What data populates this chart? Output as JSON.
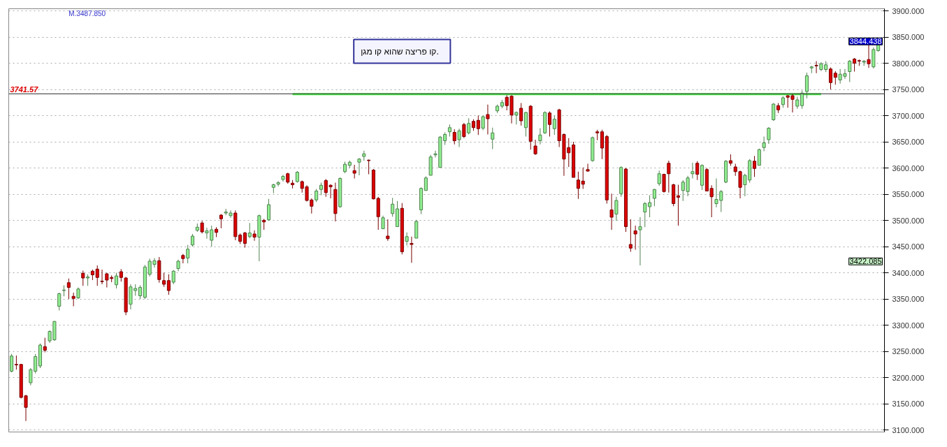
{
  "chart_data": {
    "type": "candlestick",
    "categories": [
      null,
      null,
      null,
      null,
      null,
      null,
      null,
      null,
      null,
      null,
      null,
      null,
      null,
      null,
      null,
      null,
      null,
      null,
      null,
      null,
      null,
      null,
      null,
      null,
      null,
      null,
      null,
      null,
      null,
      null,
      null,
      null,
      null,
      null,
      null,
      null,
      null,
      null,
      null,
      null,
      null,
      null,
      null,
      null,
      null,
      null,
      null,
      null,
      null,
      null,
      null,
      null,
      null,
      null,
      null,
      null,
      null,
      null,
      null,
      null,
      null,
      null,
      null,
      null,
      null,
      null,
      null,
      null,
      null,
      null,
      null,
      null,
      null,
      null,
      null,
      null,
      null,
      null,
      null,
      null,
      null,
      null,
      null,
      null,
      null,
      null,
      null,
      null,
      null,
      null,
      null,
      null,
      null,
      null,
      null,
      null,
      null,
      null,
      null,
      null,
      null,
      null,
      null,
      null,
      null,
      null,
      null,
      null,
      null,
      null,
      null,
      null,
      null,
      null,
      null,
      null,
      null,
      null,
      null,
      null,
      null,
      null,
      null,
      null,
      null,
      null,
      null,
      null,
      null,
      null,
      null,
      null,
      null,
      null,
      null,
      null,
      null,
      null,
      null,
      null,
      null,
      null,
      null,
      null,
      null,
      null,
      null,
      null,
      null,
      null,
      null,
      null,
      null,
      null,
      null,
      null,
      null,
      null,
      null,
      null,
      null,
      null,
      null,
      null,
      null,
      null,
      null,
      null,
      null,
      null,
      null,
      null,
      null,
      null,
      null,
      null,
      null,
      null,
      null,
      null,
      null,
      null,
      null
    ],
    "ohlc": [
      [
        3212,
        3245,
        3210,
        3241
      ],
      [
        3225,
        3242,
        3215,
        3224
      ],
      [
        3225,
        3226,
        3160,
        3162
      ],
      [
        3165,
        3167,
        3117,
        3143
      ],
      [
        3190,
        3218,
        3185,
        3215
      ],
      [
        3212,
        3245,
        3208,
        3240
      ],
      [
        3222,
        3265,
        3218,
        3262
      ],
      [
        3259,
        3276,
        3248,
        3252
      ],
      [
        3270,
        3290,
        3266,
        3288
      ],
      [
        3272,
        3308,
        3270,
        3307
      ],
      [
        3336,
        3362,
        3328,
        3360
      ],
      [
        3366,
        3376,
        3355,
        3367
      ],
      [
        3381,
        3389,
        3350,
        3372
      ],
      [
        3355,
        3362,
        3336,
        3351
      ],
      [
        3352,
        3372,
        3350,
        3369
      ],
      [
        3399,
        3404,
        3375,
        3390
      ],
      [
        3390,
        3397,
        3375,
        3392
      ],
      [
        3403,
        3406,
        3386,
        3396
      ],
      [
        3407,
        3414,
        3375,
        3391
      ],
      [
        3384,
        3406,
        3378,
        3383
      ],
      [
        3398,
        3400,
        3372,
        3386
      ],
      [
        3391,
        3395,
        3382,
        3389
      ],
      [
        3377,
        3400,
        3370,
        3394
      ],
      [
        3402,
        3407,
        3383,
        3391
      ],
      [
        3390,
        3392,
        3319,
        3325
      ],
      [
        3340,
        3378,
        3330,
        3373
      ],
      [
        3366,
        3378,
        3356,
        3370
      ],
      [
        3356,
        3376,
        3350,
        3372
      ],
      [
        3353,
        3415,
        3350,
        3411
      ],
      [
        3397,
        3427,
        3393,
        3422
      ],
      [
        3416,
        3428,
        3410,
        3423
      ],
      [
        3423,
        3430,
        3381,
        3387
      ],
      [
        3385,
        3400,
        3373,
        3378
      ],
      [
        3385,
        3397,
        3358,
        3366
      ],
      [
        3382,
        3405,
        3378,
        3403
      ],
      [
        3408,
        3425,
        3403,
        3422
      ],
      [
        3433,
        3436,
        3418,
        3427
      ],
      [
        3428,
        3453,
        3418,
        3445
      ],
      [
        3453,
        3474,
        3450,
        3470
      ],
      [
        3481,
        3494,
        3478,
        3487
      ],
      [
        3495,
        3499,
        3475,
        3478
      ],
      [
        3476,
        3486,
        3465,
        3480
      ],
      [
        3462,
        3490,
        3450,
        3482
      ],
      [
        3483,
        3487,
        3468,
        3477
      ],
      [
        3510,
        3512,
        3485,
        3503
      ],
      [
        3514,
        3522,
        3510,
        3516
      ],
      [
        3509,
        3519,
        3505,
        3514
      ],
      [
        3514,
        3519,
        3462,
        3469
      ],
      [
        3472,
        3475,
        3455,
        3460
      ],
      [
        3476,
        3478,
        3448,
        3456
      ],
      [
        3469,
        3495,
        3466,
        3476
      ],
      [
        3474,
        3481,
        3461,
        3468
      ],
      [
        3468,
        3511,
        3422,
        3509
      ],
      [
        3500,
        3503,
        3482,
        3497
      ],
      [
        3501,
        3541,
        3499,
        3530
      ],
      [
        3563,
        3570,
        3552,
        3568
      ],
      [
        3569,
        3575,
        3565,
        3572
      ],
      [
        3578,
        3587,
        3574,
        3584
      ],
      [
        3589,
        3591,
        3570,
        3573
      ],
      [
        3571,
        3577,
        3561,
        3568
      ],
      [
        3574,
        3594,
        3572,
        3592
      ],
      [
        3574,
        3576,
        3553,
        3561
      ],
      [
        3564,
        3567,
        3536,
        3538
      ],
      [
        3539,
        3542,
        3513,
        3527
      ],
      [
        3539,
        3560,
        3535,
        3556
      ],
      [
        3559,
        3572,
        3548,
        3567
      ],
      [
        3576,
        3579,
        3545,
        3553
      ],
      [
        3567,
        3569,
        3542,
        3564
      ],
      [
        3559,
        3572,
        3498,
        3513
      ],
      [
        3526,
        3582,
        3524,
        3580
      ],
      [
        3593,
        3612,
        3590,
        3607
      ],
      [
        3605,
        3614,
        3600,
        3611
      ],
      [
        3595,
        3606,
        3580,
        3590
      ],
      [
        3611,
        3619,
        3586,
        3617
      ],
      [
        3622,
        3633,
        3614,
        3627
      ],
      [
        3615,
        3616,
        3588,
        3614
      ],
      [
        3596,
        3598,
        3540,
        3541
      ],
      [
        3542,
        3545,
        3482,
        3507
      ],
      [
        3484,
        3509,
        3484,
        3505
      ],
      [
        3470,
        3502,
        3461,
        3465
      ],
      [
        3513,
        3543,
        3507,
        3531
      ],
      [
        3488,
        3537,
        3488,
        3522
      ],
      [
        3523,
        3533,
        3435,
        3440
      ],
      [
        3460,
        3477,
        3452,
        3469
      ],
      [
        3456,
        3469,
        3419,
        3454
      ],
      [
        3466,
        3501,
        3466,
        3498
      ],
      [
        3520,
        3563,
        3512,
        3561
      ],
      [
        3557,
        3584,
        3557,
        3581
      ],
      [
        3586,
        3625,
        3586,
        3621
      ],
      [
        3625,
        3633,
        3620,
        3627
      ],
      [
        3601,
        3661,
        3601,
        3659
      ],
      [
        3652,
        3668,
        3644,
        3664
      ],
      [
        3669,
        3683,
        3660,
        3677
      ],
      [
        3668,
        3674,
        3645,
        3652
      ],
      [
        3654,
        3675,
        3640,
        3671
      ],
      [
        3683,
        3686,
        3657,
        3660
      ],
      [
        3667,
        3695,
        3664,
        3685
      ],
      [
        3689,
        3693,
        3671,
        3677
      ],
      [
        3691,
        3700,
        3663,
        3675
      ],
      [
        3676,
        3700,
        3672,
        3698
      ],
      [
        3702,
        3721,
        3664,
        3694
      ],
      [
        3655,
        3677,
        3636,
        3667
      ],
      [
        3709,
        3721,
        3705,
        3718
      ],
      [
        3718,
        3730,
        3714,
        3725
      ],
      [
        3735,
        3739,
        3710,
        3719
      ],
      [
        3737,
        3739,
        3685,
        3701
      ],
      [
        3701,
        3708,
        3683,
        3706
      ],
      [
        3714,
        3724,
        3681,
        3690
      ],
      [
        3677,
        3707,
        3660,
        3706
      ],
      [
        3718,
        3720,
        3635,
        3651
      ],
      [
        3642,
        3654,
        3625,
        3627
      ],
      [
        3652,
        3676,
        3645,
        3663
      ],
      [
        3667,
        3708,
        3665,
        3706
      ],
      [
        3705,
        3708,
        3660,
        3683
      ],
      [
        3675,
        3700,
        3663,
        3693
      ],
      [
        3711,
        3713,
        3640,
        3652
      ],
      [
        3664,
        3666,
        3585,
        3617
      ],
      [
        3639,
        3657,
        3602,
        3629
      ],
      [
        3644,
        3650,
        3582,
        3582
      ],
      [
        3577,
        3593,
        3541,
        3561
      ],
      [
        3575,
        3601,
        3560,
        3569
      ],
      [
        3597,
        3608,
        3593,
        3594
      ],
      [
        3614,
        3660,
        3612,
        3658
      ],
      [
        3669,
        3673,
        3653,
        3667
      ],
      [
        3669,
        3673,
        3617,
        3638
      ],
      [
        3660,
        3663,
        3532,
        3539
      ],
      [
        3520,
        3551,
        3482,
        3506
      ],
      [
        3512,
        3545,
        3499,
        3538
      ],
      [
        3551,
        3603,
        3545,
        3601
      ],
      [
        3598,
        3600,
        3478,
        3488
      ],
      [
        3454,
        3502,
        3440,
        3447
      ],
      [
        3480,
        3490,
        3444,
        3474
      ],
      [
        3482,
        3506,
        3414,
        3488
      ],
      [
        3516,
        3535,
        3487,
        3532
      ],
      [
        3526,
        3548,
        3506,
        3534
      ],
      [
        3542,
        3560,
        3527,
        3559
      ],
      [
        3570,
        3595,
        3566,
        3589
      ],
      [
        3588,
        3589,
        3553,
        3555
      ],
      [
        3609,
        3614,
        3553,
        3589
      ],
      [
        3568,
        3570,
        3527,
        3532
      ],
      [
        3547,
        3568,
        3490,
        3544
      ],
      [
        3557,
        3577,
        3537,
        3573
      ],
      [
        3555,
        3585,
        3546,
        3581
      ],
      [
        3589,
        3610,
        3580,
        3593
      ],
      [
        3609,
        3613,
        3577,
        3588
      ],
      [
        3567,
        3607,
        3558,
        3605
      ],
      [
        3597,
        3600,
        3556,
        3556
      ],
      [
        3561,
        3567,
        3506,
        3545
      ],
      [
        3532,
        3580,
        3525,
        3540
      ],
      [
        3538,
        3558,
        3516,
        3555
      ],
      [
        3573,
        3615,
        3571,
        3613
      ],
      [
        3614,
        3626,
        3604,
        3609
      ],
      [
        3602,
        3608,
        3585,
        3593
      ],
      [
        3593,
        3595,
        3542,
        3563
      ],
      [
        3568,
        3589,
        3546,
        3586
      ],
      [
        3577,
        3617,
        3572,
        3614
      ],
      [
        3613,
        3623,
        3583,
        3599
      ],
      [
        3605,
        3637,
        3605,
        3635
      ],
      [
        3639,
        3660,
        3632,
        3648
      ],
      [
        3654,
        3678,
        3646,
        3676
      ],
      [
        3692,
        3724,
        3690,
        3722
      ],
      [
        3719,
        3724,
        3705,
        3711
      ],
      [
        3721,
        3737,
        3715,
        3734
      ],
      [
        3738,
        3739,
        3715,
        3735
      ],
      [
        3738,
        3741,
        3706,
        3731
      ],
      [
        3718,
        3736,
        3713,
        3730
      ],
      [
        3719,
        3748,
        3713,
        3743
      ],
      [
        3746,
        3782,
        3733,
        3776
      ],
      [
        3791,
        3795,
        3781,
        3793
      ],
      [
        3796,
        3804,
        3781,
        3795
      ],
      [
        3788,
        3802,
        3785,
        3799
      ],
      [
        3788,
        3804,
        3783,
        3797
      ],
      [
        3789,
        3792,
        3750,
        3763
      ],
      [
        3781,
        3785,
        3759,
        3773
      ],
      [
        3768,
        3789,
        3761,
        3779
      ],
      [
        3775,
        3789,
        3770,
        3780
      ],
      [
        3784,
        3806,
        3764,
        3804
      ],
      [
        3808,
        3810,
        3784,
        3800
      ],
      [
        3805,
        3807,
        3795,
        3804
      ],
      [
        3802,
        3806,
        3795,
        3804
      ],
      [
        3807,
        3836,
        3791,
        3799
      ],
      [
        3793,
        3830,
        3790,
        3826
      ],
      [
        3824,
        3846,
        3822,
        3844
      ]
    ],
    "colors": [
      "#90ee90",
      "#dd0000",
      "#dd0000",
      "#dd0000",
      "#90ee90",
      "#90ee90",
      "#90ee90",
      "#dd0000",
      "#90ee90",
      "#90ee90",
      "#90ee90",
      "#90ee90",
      "#dd0000",
      "#dd0000",
      "#90ee90",
      "#dd0000",
      "#90ee90",
      "#dd0000",
      "#dd0000",
      "#dd0000",
      "#dd0000",
      "#dd0000",
      "#90ee90",
      "#dd0000",
      "#dd0000",
      "#90ee90",
      "#90ee90",
      "#90ee90",
      "#90ee90",
      "#90ee90",
      "#90ee90",
      "#dd0000",
      "#dd0000",
      "#dd0000",
      "#90ee90",
      "#90ee90",
      "#dd0000",
      "#90ee90",
      "#90ee90",
      "#90ee90",
      "#dd0000",
      "#90ee90",
      "#90ee90",
      "#dd0000",
      "#dd0000",
      "#90ee90",
      "#90ee90",
      "#dd0000",
      "#dd0000",
      "#dd0000",
      "#90ee90",
      "#dd0000",
      "#90ee90",
      "#dd0000",
      "#90ee90",
      "#90ee90",
      "#90ee90",
      "#90ee90",
      "#dd0000",
      "#dd0000",
      "#90ee90",
      "#dd0000",
      "#dd0000",
      "#dd0000",
      "#90ee90",
      "#90ee90",
      "#dd0000",
      "#dd0000",
      "#dd0000",
      "#90ee90",
      "#90ee90",
      "#90ee90",
      "#dd0000",
      "#90ee90",
      "#90ee90",
      "#dd0000",
      "#dd0000",
      "#dd0000",
      "#90ee90",
      "#dd0000",
      "#90ee90",
      "#90ee90",
      "#dd0000",
      "#90ee90",
      "#dd0000",
      "#90ee90",
      "#90ee90",
      "#90ee90",
      "#90ee90",
      "#90ee90",
      "#90ee90",
      "#90ee90",
      "#90ee90",
      "#dd0000",
      "#90ee90",
      "#dd0000",
      "#90ee90",
      "#dd0000",
      "#dd0000",
      "#90ee90",
      "#dd0000",
      "#90ee90",
      "#90ee90",
      "#90ee90",
      "#dd0000",
      "#dd0000",
      "#90ee90",
      "#dd0000",
      "#90ee90",
      "#dd0000",
      "#dd0000",
      "#90ee90",
      "#90ee90",
      "#dd0000",
      "#90ee90",
      "#dd0000",
      "#dd0000",
      "#dd0000",
      "#dd0000",
      "#dd0000",
      "#dd0000",
      "#dd0000",
      "#90ee90",
      "#dd0000",
      "#dd0000",
      "#dd0000",
      "#dd0000",
      "#90ee90",
      "#90ee90",
      "#dd0000",
      "#dd0000",
      "#dd0000",
      "#90ee90",
      "#90ee90",
      "#90ee90",
      "#90ee90",
      "#90ee90",
      "#dd0000",
      "#dd0000",
      "#dd0000",
      "#dd0000",
      "#90ee90",
      "#90ee90",
      "#90ee90",
      "#dd0000",
      "#90ee90",
      "#dd0000",
      "#dd0000",
      "#90ee90",
      "#90ee90",
      "#90ee90",
      "#dd0000",
      "#dd0000",
      "#dd0000",
      "#90ee90",
      "#90ee90",
      "#dd0000",
      "#90ee90",
      "#90ee90",
      "#90ee90",
      "#90ee90",
      "#dd0000",
      "#90ee90",
      "#dd0000",
      "#dd0000",
      "#90ee90",
      "#90ee90",
      "#90ee90",
      "#90ee90",
      "#dd0000",
      "#90ee90",
      "#90ee90",
      "#dd0000",
      "#dd0000",
      "#90ee90",
      "#90ee90",
      "#90ee90",
      "#dd0000",
      "#dd0000",
      "#90ee90",
      "#dd0000",
      "#90ee90",
      "#90ee90"
    ],
    "series": [
      {
        "type": "line",
        "color": "#33ee33",
        "values": [
          null,
          null,
          null,
          null,
          null,
          null,
          null,
          null,
          null,
          null,
          null,
          null,
          null,
          null,
          null,
          null,
          null,
          null,
          null,
          null,
          null,
          null,
          null,
          null,
          null,
          null,
          null,
          null,
          null,
          null,
          null,
          null,
          null,
          null,
          null,
          null,
          null,
          null,
          null,
          null,
          null,
          null,
          null,
          null,
          null,
          null,
          null,
          null,
          null,
          null,
          null,
          null,
          null,
          null,
          null,
          null,
          null,
          null,
          null,
          3741,
          3741,
          3741,
          3741,
          3741,
          3741,
          3741,
          3741,
          3741,
          3741,
          3741,
          3741,
          3741,
          3741,
          3741,
          3741,
          3741,
          3741,
          3741,
          3741,
          3741,
          3741,
          3741,
          3741,
          3741,
          3741,
          3741,
          3741,
          3741,
          3741,
          3741,
          3741,
          3741,
          3741,
          3741,
          3741,
          3741,
          3741,
          3741,
          3741,
          3741,
          3741,
          3741,
          3741,
          3741,
          3741,
          3741,
          3741,
          3741,
          3741,
          3741,
          3741,
          3741,
          3741,
          3741,
          3741,
          3741,
          3741,
          3741,
          3741,
          3741,
          3741,
          3741,
          3741,
          3741,
          3741,
          3741,
          3741,
          3741,
          3741,
          3741,
          3741,
          3741,
          3741,
          3741,
          3741,
          3741,
          3741,
          3741,
          3741,
          3741,
          3741,
          3741,
          3741,
          3741,
          3741,
          3741,
          3741,
          3741,
          3741,
          3741,
          3741,
          3741,
          3741,
          3741,
          3741,
          3741,
          3741,
          3741,
          3741,
          3741,
          3741,
          3741,
          3741,
          3741,
          3741,
          3741,
          3741,
          3741,
          3741,
          3741,
          3741,
          null,
          null,
          null,
          null,
          null,
          null,
          null,
          null,
          null,
          null,
          null,
          null
        ]
      }
    ],
    "ref_lines": [
      {
        "axis": "y",
        "value": 3741.57,
        "label": "3741.57",
        "color": "#555555"
      }
    ],
    "annotations": [
      "M.3487.850",
      "3844.438",
      "3422.085",
      "קו פריצה  שהוא  קו מגן."
    ],
    "ylim": [
      3096,
      3904
    ],
    "yticks": [
      {
        "value": 3100,
        "label": "3100.000"
      },
      {
        "value": 3150,
        "label": "3150.000"
      },
      {
        "value": 3200,
        "label": "3200.000"
      },
      {
        "value": 3250,
        "label": "3250.000"
      },
      {
        "value": 3300,
        "label": "3300.000"
      },
      {
        "value": 3350,
        "label": "3350.000"
      },
      {
        "value": 3400,
        "label": "3400.000"
      },
      {
        "value": 3450,
        "label": "3450.000"
      },
      {
        "value": 3500,
        "label": "3500.000"
      },
      {
        "value": 3550,
        "label": "3550.000"
      },
      {
        "value": 3600,
        "label": "3600.000"
      },
      {
        "value": 3650,
        "label": "3650.000"
      },
      {
        "value": 3700,
        "label": "3700.000"
      },
      {
        "value": 3750,
        "label": "3750.000"
      },
      {
        "value": 3800,
        "label": "3800.000"
      },
      {
        "value": 3850,
        "label": "3850.000"
      },
      {
        "value": 3900,
        "label": "3900.000"
      }
    ],
    "grid": true,
    "tick_labels": "y"
  }
}
